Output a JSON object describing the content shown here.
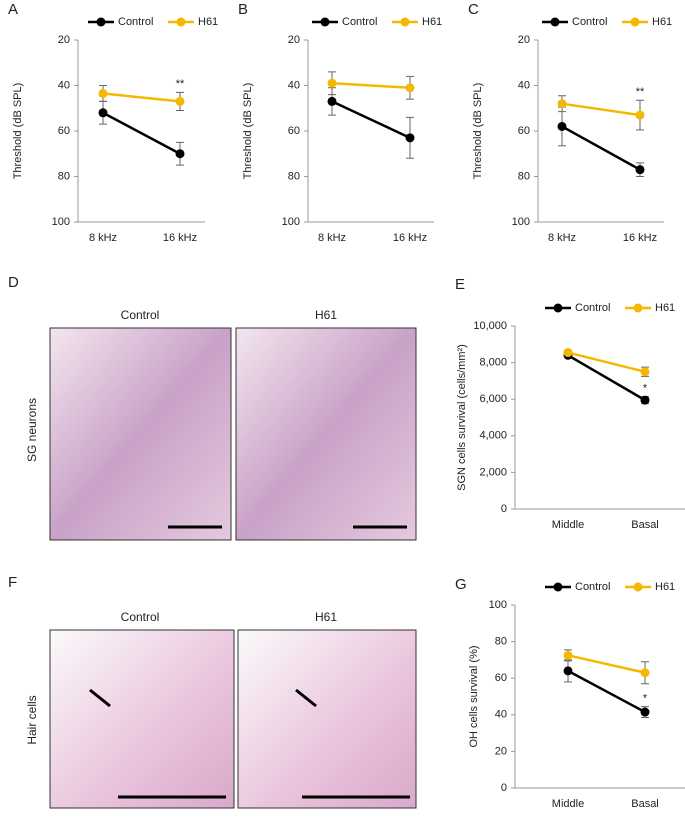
{
  "chart_data": [
    {
      "type": "line",
      "panel": "A",
      "y_label": "Threshold (dB SPL)",
      "categories": [
        "8 kHz",
        "16 kHz"
      ],
      "ylim": [
        100,
        20
      ],
      "yticks": [
        20,
        40,
        60,
        80,
        100
      ],
      "legend": "top",
      "series": [
        {
          "name": "Control",
          "color": "#000000",
          "values": [
            52,
            70
          ],
          "errors": [
            5,
            5
          ]
        },
        {
          "name": "H61",
          "color": "#f5b800",
          "values": [
            43.5,
            47
          ],
          "errors": [
            3.5,
            4
          ],
          "sig_labels": [
            null,
            "**"
          ]
        }
      ]
    },
    {
      "type": "line",
      "panel": "B",
      "y_label": "Threshold (dB SPL)",
      "categories": [
        "8 kHz",
        "16 kHz"
      ],
      "ylim": [
        100,
        20
      ],
      "yticks": [
        20,
        40,
        60,
        80,
        100
      ],
      "legend": "top",
      "series": [
        {
          "name": "Control",
          "color": "#000000",
          "values": [
            47,
            63
          ],
          "errors": [
            6,
            9
          ]
        },
        {
          "name": "H61",
          "color": "#f5b800",
          "values": [
            39,
            41
          ],
          "errors": [
            5,
            5
          ]
        }
      ]
    },
    {
      "type": "line",
      "panel": "C",
      "y_label": "Threshold (dB SPL)",
      "categories": [
        "8 kHz",
        "16 kHz"
      ],
      "ylim": [
        100,
        20
      ],
      "yticks": [
        20,
        40,
        60,
        80,
        100
      ],
      "legend": "top",
      "series": [
        {
          "name": "Control",
          "color": "#000000",
          "values": [
            58,
            77
          ],
          "errors": [
            8.5,
            3
          ]
        },
        {
          "name": "H61",
          "color": "#f5b800",
          "values": [
            48,
            53
          ],
          "errors": [
            3.5,
            6.5
          ],
          "sig_labels": [
            null,
            "**"
          ]
        }
      ]
    },
    {
      "type": "line",
      "panel": "E",
      "y_label": "SGN cells survival (cells/mm²)",
      "categories": [
        "Middle",
        "Basal"
      ],
      "ylim": [
        0,
        10000
      ],
      "yticks": [
        0,
        {
          "value": 2000,
          "label": "2,000"
        },
        {
          "value": 4000,
          "label": "4,000"
        },
        {
          "value": 6000,
          "label": "6,000"
        },
        {
          "value": 8000,
          "label": "8,000"
        },
        {
          "value": 10000,
          "label": "10,000"
        }
      ],
      "legend": "top",
      "series": [
        {
          "name": "Control",
          "color": "#000000",
          "values": [
            8400,
            5950
          ],
          "errors": [
            100,
            200
          ],
          "sig_labels": [
            null,
            "*"
          ]
        },
        {
          "name": "H61",
          "color": "#f5b800",
          "values": [
            8550,
            7500
          ],
          "errors": [
            100,
            250
          ]
        }
      ]
    },
    {
      "type": "line",
      "panel": "G",
      "y_label": "OH cells survival (%)",
      "categories": [
        "Middle",
        "Basal"
      ],
      "ylim": [
        0,
        100
      ],
      "yticks": [
        0,
        20,
        40,
        60,
        80,
        100
      ],
      "legend": "top",
      "series": [
        {
          "name": "Control",
          "color": "#000000",
          "values": [
            64,
            41.5
          ],
          "errors": [
            6,
            3
          ],
          "sig_labels": [
            null,
            "*"
          ]
        },
        {
          "name": "H61",
          "color": "#f5b800",
          "values": [
            72.5,
            63
          ],
          "errors": [
            3,
            6
          ]
        }
      ]
    }
  ],
  "image_panels": [
    {
      "panel": "D",
      "row_label": "SG neurons",
      "captions": [
        "Control",
        "H61"
      ]
    },
    {
      "panel": "F",
      "row_label": "Hair cells",
      "captions": [
        "Control",
        "H61"
      ]
    }
  ]
}
